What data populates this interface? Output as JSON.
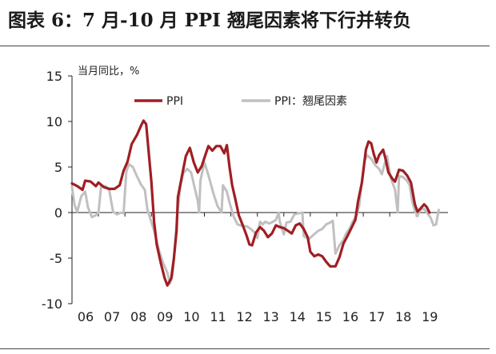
{
  "figure": {
    "title": "图表 6：7 月-10 月 PPI 翘尾因素将下行并转负"
  },
  "chart_data": {
    "type": "line",
    "ylabel": "当月同比，%",
    "ylim": [
      -10,
      15
    ],
    "yticks": [
      -10,
      -5,
      0,
      5,
      10,
      15
    ],
    "xlim": [
      2006,
      2020.2
    ],
    "xticks": [
      {
        "value": 2006,
        "label": "06"
      },
      {
        "value": 2007,
        "label": "07"
      },
      {
        "value": 2008,
        "label": "08"
      },
      {
        "value": 2009,
        "label": "09"
      },
      {
        "value": 2010,
        "label": "10"
      },
      {
        "value": 2011,
        "label": "11"
      },
      {
        "value": 2012,
        "label": "12"
      },
      {
        "value": 2013,
        "label": "13"
      },
      {
        "value": 2014,
        "label": "14"
      },
      {
        "value": 2015,
        "label": "15"
      },
      {
        "value": 2016,
        "label": "16"
      },
      {
        "value": 2017,
        "label": "17"
      },
      {
        "value": 2018,
        "label": "18"
      },
      {
        "value": 2019,
        "label": "19"
      }
    ],
    "grid": false,
    "legend_position": "top",
    "series": [
      {
        "name": "PPI",
        "color": "#a01e23",
        "points": [
          [
            2006.0,
            3.2
          ],
          [
            2006.2,
            2.9
          ],
          [
            2006.4,
            2.5
          ],
          [
            2006.5,
            3.5
          ],
          [
            2006.7,
            3.4
          ],
          [
            2006.9,
            2.9
          ],
          [
            2007.0,
            3.3
          ],
          [
            2007.2,
            2.8
          ],
          [
            2007.4,
            2.6
          ],
          [
            2007.6,
            2.6
          ],
          [
            2007.8,
            3.0
          ],
          [
            2007.95,
            4.6
          ],
          [
            2008.1,
            5.6
          ],
          [
            2008.25,
            7.5
          ],
          [
            2008.45,
            8.5
          ],
          [
            2008.6,
            9.5
          ],
          [
            2008.7,
            10.1
          ],
          [
            2008.8,
            9.7
          ],
          [
            2008.9,
            6.5
          ],
          [
            2009.0,
            3.3
          ],
          [
            2009.1,
            -1.0
          ],
          [
            2009.2,
            -3.5
          ],
          [
            2009.35,
            -5.5
          ],
          [
            2009.5,
            -7.2
          ],
          [
            2009.6,
            -8.0
          ],
          [
            2009.75,
            -7.2
          ],
          [
            2009.85,
            -5.0
          ],
          [
            2009.95,
            -2.0
          ],
          [
            2010.0,
            1.7
          ],
          [
            2010.15,
            4.0
          ],
          [
            2010.3,
            6.2
          ],
          [
            2010.45,
            7.1
          ],
          [
            2010.6,
            5.5
          ],
          [
            2010.75,
            4.4
          ],
          [
            2010.9,
            5.1
          ],
          [
            2011.0,
            6.0
          ],
          [
            2011.15,
            7.3
          ],
          [
            2011.3,
            6.8
          ],
          [
            2011.45,
            7.3
          ],
          [
            2011.6,
            7.3
          ],
          [
            2011.75,
            6.5
          ],
          [
            2011.85,
            7.4
          ],
          [
            2011.95,
            5.0
          ],
          [
            2012.05,
            3.0
          ],
          [
            2012.15,
            1.7
          ],
          [
            2012.3,
            -0.3
          ],
          [
            2012.45,
            -1.4
          ],
          [
            2012.6,
            -2.6
          ],
          [
            2012.7,
            -3.5
          ],
          [
            2012.8,
            -3.6
          ],
          [
            2012.95,
            -2.2
          ],
          [
            2013.1,
            -1.6
          ],
          [
            2013.25,
            -2.0
          ],
          [
            2013.4,
            -2.7
          ],
          [
            2013.55,
            -2.3
          ],
          [
            2013.7,
            -1.4
          ],
          [
            2013.85,
            -1.6
          ],
          [
            2014.0,
            -1.7
          ],
          [
            2014.15,
            -2.0
          ],
          [
            2014.3,
            -2.3
          ],
          [
            2014.45,
            -1.4
          ],
          [
            2014.6,
            -1.2
          ],
          [
            2014.75,
            -1.8
          ],
          [
            2014.9,
            -2.7
          ],
          [
            2015.0,
            -4.3
          ],
          [
            2015.15,
            -4.8
          ],
          [
            2015.3,
            -4.6
          ],
          [
            2015.45,
            -4.8
          ],
          [
            2015.6,
            -5.4
          ],
          [
            2015.75,
            -5.9
          ],
          [
            2015.95,
            -5.9
          ],
          [
            2016.1,
            -4.9
          ],
          [
            2016.25,
            -3.4
          ],
          [
            2016.4,
            -2.6
          ],
          [
            2016.55,
            -1.7
          ],
          [
            2016.7,
            -0.8
          ],
          [
            2016.8,
            1.2
          ],
          [
            2016.95,
            3.3
          ],
          [
            2017.1,
            6.9
          ],
          [
            2017.2,
            7.8
          ],
          [
            2017.3,
            7.6
          ],
          [
            2017.4,
            6.4
          ],
          [
            2017.5,
            5.5
          ],
          [
            2017.6,
            6.3
          ],
          [
            2017.75,
            6.9
          ],
          [
            2017.85,
            5.8
          ],
          [
            2017.95,
            4.4
          ],
          [
            2018.1,
            3.7
          ],
          [
            2018.2,
            3.4
          ],
          [
            2018.35,
            4.7
          ],
          [
            2018.5,
            4.6
          ],
          [
            2018.65,
            4.1
          ],
          [
            2018.8,
            3.3
          ],
          [
            2018.95,
            0.9
          ],
          [
            2019.05,
            0.1
          ],
          [
            2019.15,
            0.4
          ],
          [
            2019.3,
            0.9
          ],
          [
            2019.4,
            0.6
          ],
          [
            2019.5,
            0.0
          ]
        ]
      },
      {
        "name": "PPI：翘尾因素",
        "color": "#c0c0c0",
        "points": [
          [
            2006.0,
            2.8
          ],
          [
            2006.1,
            0.8
          ],
          [
            2006.2,
            0.1
          ],
          [
            2006.35,
            1.8
          ],
          [
            2006.5,
            2.3
          ],
          [
            2006.6,
            0.6
          ],
          [
            2006.75,
            -0.5
          ],
          [
            2006.9,
            -0.3
          ],
          [
            2007.0,
            0.0
          ],
          [
            2007.1,
            2.9
          ],
          [
            2007.25,
            2.9
          ],
          [
            2007.4,
            2.6
          ],
          [
            2007.55,
            0.1
          ],
          [
            2007.7,
            -0.2
          ],
          [
            2007.85,
            0.0
          ],
          [
            2007.95,
            -0.1
          ],
          [
            2008.05,
            4.5
          ],
          [
            2008.15,
            5.3
          ],
          [
            2008.3,
            5.0
          ],
          [
            2008.45,
            4.0
          ],
          [
            2008.6,
            3.1
          ],
          [
            2008.75,
            2.5
          ],
          [
            2008.85,
            0.3
          ],
          [
            2008.95,
            -0.6
          ],
          [
            2009.1,
            -2.0
          ],
          [
            2009.3,
            -4.3
          ],
          [
            2009.45,
            -5.6
          ],
          [
            2009.6,
            -6.6
          ],
          [
            2009.7,
            -7.8
          ],
          [
            2009.8,
            -6.8
          ],
          [
            2009.9,
            -3.0
          ],
          [
            2010.0,
            0.5
          ],
          [
            2010.1,
            3.0
          ],
          [
            2010.2,
            4.3
          ],
          [
            2010.35,
            4.8
          ],
          [
            2010.5,
            4.4
          ],
          [
            2010.65,
            2.5
          ],
          [
            2010.75,
            1.3
          ],
          [
            2010.8,
            0.0
          ],
          [
            2010.85,
            3.5
          ],
          [
            2011.0,
            5.5
          ],
          [
            2011.1,
            4.6
          ],
          [
            2011.2,
            3.6
          ],
          [
            2011.35,
            2.0
          ],
          [
            2011.5,
            0.7
          ],
          [
            2011.65,
            0.0
          ],
          [
            2011.7,
            3.0
          ],
          [
            2011.85,
            2.3
          ],
          [
            2011.95,
            1.1
          ],
          [
            2012.1,
            -0.4
          ],
          [
            2012.25,
            -1.3
          ],
          [
            2012.45,
            -1.5
          ],
          [
            2012.6,
            -1.5
          ],
          [
            2012.75,
            -1.8
          ],
          [
            2012.9,
            -2.2
          ],
          [
            2013.0,
            -2.8
          ],
          [
            2013.1,
            -1.0
          ],
          [
            2013.2,
            -1.3
          ],
          [
            2013.3,
            -1.0
          ],
          [
            2013.45,
            -1.2
          ],
          [
            2013.6,
            -1.0
          ],
          [
            2013.7,
            -0.8
          ],
          [
            2013.8,
            0.0
          ],
          [
            2013.85,
            -1.0
          ],
          [
            2014.0,
            -2.4
          ],
          [
            2014.1,
            -1.1
          ],
          [
            2014.25,
            -1.0
          ],
          [
            2014.4,
            -0.2
          ],
          [
            2014.55,
            -0.1
          ],
          [
            2014.7,
            0.0
          ],
          [
            2014.75,
            -2.6
          ],
          [
            2014.95,
            -2.9
          ],
          [
            2015.1,
            -2.5
          ],
          [
            2015.3,
            -2.0
          ],
          [
            2015.45,
            -1.8
          ],
          [
            2015.6,
            -1.3
          ],
          [
            2015.75,
            -1.1
          ],
          [
            2015.85,
            -0.9
          ],
          [
            2015.95,
            -4.5
          ],
          [
            2016.1,
            -3.6
          ],
          [
            2016.25,
            -3.0
          ],
          [
            2016.35,
            -2.3
          ],
          [
            2016.5,
            -1.7
          ],
          [
            2016.6,
            -1.0
          ],
          [
            2016.75,
            -0.3
          ],
          [
            2016.85,
            0.8
          ],
          [
            2016.95,
            3.5
          ],
          [
            2017.05,
            5.7
          ],
          [
            2017.15,
            6.3
          ],
          [
            2017.3,
            5.9
          ],
          [
            2017.45,
            5.2
          ],
          [
            2017.6,
            4.8
          ],
          [
            2017.7,
            4.2
          ],
          [
            2017.8,
            5.3
          ],
          [
            2017.9,
            6.2
          ],
          [
            2017.95,
            5.2
          ],
          [
            2018.05,
            3.7
          ],
          [
            2018.2,
            2.5
          ],
          [
            2018.3,
            0.0
          ],
          [
            2018.35,
            4.0
          ],
          [
            2018.5,
            3.9
          ],
          [
            2018.65,
            3.5
          ],
          [
            2018.75,
            3.0
          ],
          [
            2018.85,
            1.2
          ],
          [
            2018.95,
            0.2
          ],
          [
            2019.05,
            -0.4
          ],
          [
            2019.15,
            0.3
          ],
          [
            2019.3,
            0.4
          ],
          [
            2019.4,
            0.0
          ],
          [
            2019.55,
            -0.6
          ],
          [
            2019.65,
            -1.4
          ],
          [
            2019.75,
            -1.3
          ],
          [
            2019.85,
            0.3
          ]
        ]
      }
    ]
  }
}
